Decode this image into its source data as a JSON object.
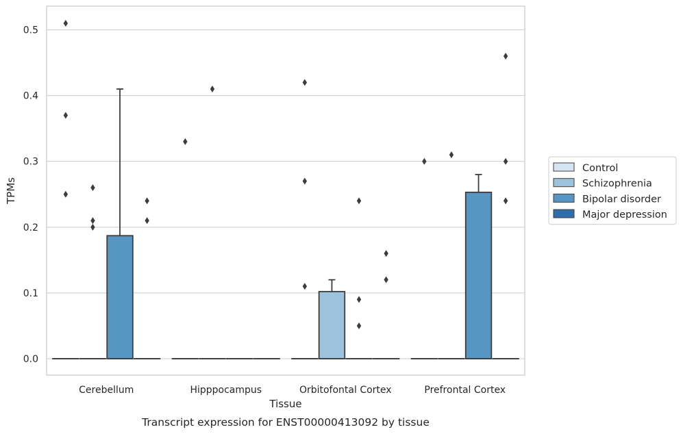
{
  "chart_data": {
    "type": "box",
    "title": "",
    "caption": "Transcript expression for ENST00000413092 by tissue",
    "xlabel": "Tissue",
    "ylabel": "TPMs",
    "ylim": [
      -0.025,
      0.536
    ],
    "yticks": [
      "0.0",
      "0.1",
      "0.2",
      "0.3",
      "0.4",
      "0.5"
    ],
    "ytick_values": [
      0.0,
      0.1,
      0.2,
      0.3,
      0.4,
      0.5
    ],
    "grid": "horizontal",
    "legend_position": "right",
    "categories": [
      "Cerebellum",
      "Hipppocampus",
      "Orbitofontal Cortex",
      "Prefrontal Cortex"
    ],
    "series": [
      {
        "name": "Control",
        "color": "#d6e5f3",
        "boxes": [
          {
            "q1": 0,
            "median": 0,
            "q3": 0,
            "whislo": 0,
            "whishi": 0,
            "fliers": [
              0.51,
              0.37,
              0.25
            ]
          },
          {
            "q1": 0,
            "median": 0,
            "q3": 0,
            "whislo": 0,
            "whishi": 0,
            "fliers": [
              0.33
            ]
          },
          {
            "q1": 0,
            "median": 0,
            "q3": 0,
            "whislo": 0,
            "whishi": 0,
            "fliers": [
              0.42,
              0.27,
              0.11
            ]
          },
          {
            "q1": 0,
            "median": 0,
            "q3": 0,
            "whislo": 0,
            "whishi": 0,
            "fliers": [
              0.3
            ]
          }
        ]
      },
      {
        "name": "Schizophrenia",
        "color": "#9dc2dc",
        "boxes": [
          {
            "q1": 0,
            "median": 0,
            "q3": 0,
            "whislo": 0,
            "whishi": 0,
            "fliers": [
              0.26,
              0.21,
              0.2
            ]
          },
          {
            "q1": 0,
            "median": 0,
            "q3": 0,
            "whislo": 0,
            "whishi": 0,
            "fliers": [
              0.41
            ]
          },
          {
            "q1": 0,
            "median": 0,
            "q3": 0.102,
            "whislo": 0,
            "whishi": 0.12,
            "fliers": []
          },
          {
            "q1": 0,
            "median": 0,
            "q3": 0,
            "whislo": 0,
            "whishi": 0,
            "fliers": [
              0.31
            ]
          }
        ]
      },
      {
        "name": "Bipolar disorder",
        "color": "#5796c3",
        "boxes": [
          {
            "q1": 0,
            "median": 0,
            "q3": 0.187,
            "whislo": 0,
            "whishi": 0.41,
            "fliers": []
          },
          {
            "q1": 0,
            "median": 0,
            "q3": 0,
            "whislo": 0,
            "whishi": 0,
            "fliers": []
          },
          {
            "q1": 0,
            "median": 0,
            "q3": 0,
            "whislo": 0,
            "whishi": 0,
            "fliers": [
              0.24,
              0.09,
              0.05
            ]
          },
          {
            "q1": 0,
            "median": 0,
            "q3": 0.253,
            "whislo": 0,
            "whishi": 0.28,
            "fliers": []
          }
        ]
      },
      {
        "name": "Major depression",
        "color": "#2e6fab",
        "boxes": [
          {
            "q1": 0,
            "median": 0,
            "q3": 0,
            "whislo": 0,
            "whishi": 0,
            "fliers": [
              0.24,
              0.21
            ]
          },
          {
            "q1": 0,
            "median": 0,
            "q3": 0,
            "whislo": 0,
            "whishi": 0,
            "fliers": []
          },
          {
            "q1": 0,
            "median": 0,
            "q3": 0,
            "whislo": 0,
            "whishi": 0,
            "fliers": [
              0.16,
              0.12
            ]
          },
          {
            "q1": 0,
            "median": 0,
            "q3": 0,
            "whislo": 0,
            "whishi": 0,
            "fliers": [
              0.46,
              0.3,
              0.24
            ]
          }
        ]
      }
    ]
  }
}
